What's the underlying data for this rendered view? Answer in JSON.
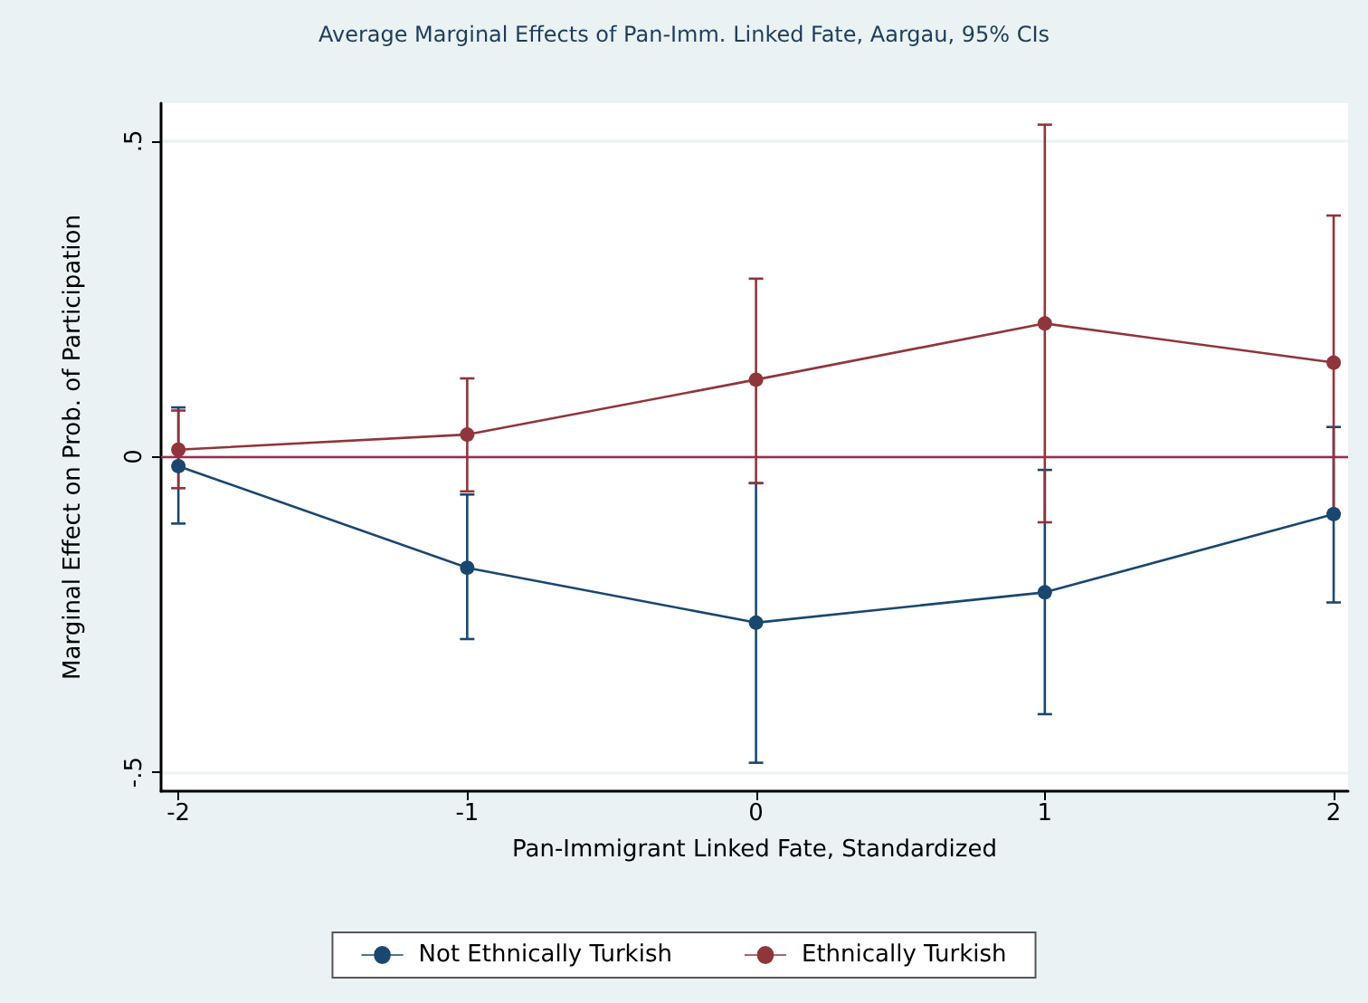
{
  "chart_data": {
    "type": "line",
    "title": "Average Marginal Effects of Pan-Imm. Linked Fate, Aargau, 95% CIs",
    "xlabel": "Pan-Immigrant Linked Fate, Standardized",
    "ylabel": "Marginal Effect on Prob. of Participation",
    "x": [
      -2,
      -1,
      0,
      1,
      2
    ],
    "series": [
      {
        "name": "Not Ethnically Turkish",
        "color": "#1a476f",
        "values": [
          -0.015,
          -0.176,
          -0.263,
          -0.215,
          -0.091
        ],
        "errors": [
          [
            -0.106,
            0.078
          ],
          [
            -0.289,
            -0.06
          ],
          [
            -0.485,
            -0.042
          ],
          [
            -0.408,
            -0.021
          ],
          [
            -0.231,
            0.047
          ]
        ]
      },
      {
        "name": "Ethnically Turkish",
        "color": "#90353b",
        "values": [
          0.011,
          0.035,
          0.122,
          0.211,
          0.149
        ],
        "errors": [
          [
            -0.05,
            0.073
          ],
          [
            -0.055,
            0.124
          ],
          [
            -0.042,
            0.282
          ],
          [
            -0.104,
            0.526
          ],
          [
            -0.09,
            0.382
          ]
        ]
      }
    ],
    "xlim": [
      -2.06,
      2.05
    ],
    "xticks": [
      -2,
      -1,
      0,
      1,
      2
    ],
    "ylim": [
      -0.53,
      0.56
    ],
    "yticks": [
      {
        "value": -0.5,
        "label": "-.5"
      },
      0,
      {
        "value": 0.5,
        "label": ".5"
      }
    ],
    "ref_lines": [
      {
        "axis": "y",
        "value": 0,
        "color": "#a0294a"
      }
    ],
    "grid": "y",
    "legend": "bottom",
    "marker": "circle",
    "line_style": "solid"
  }
}
